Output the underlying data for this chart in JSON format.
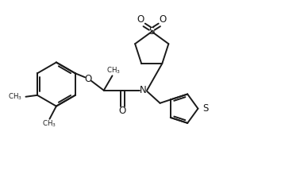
{
  "bg_color": "#ffffff",
  "line_color": "#1a1a1a",
  "line_width": 1.4,
  "font_size": 8.5,
  "fig_width": 3.83,
  "fig_height": 2.19,
  "dpi": 100,
  "xlim": [
    0,
    10
  ],
  "ylim": [
    0,
    5.72
  ]
}
